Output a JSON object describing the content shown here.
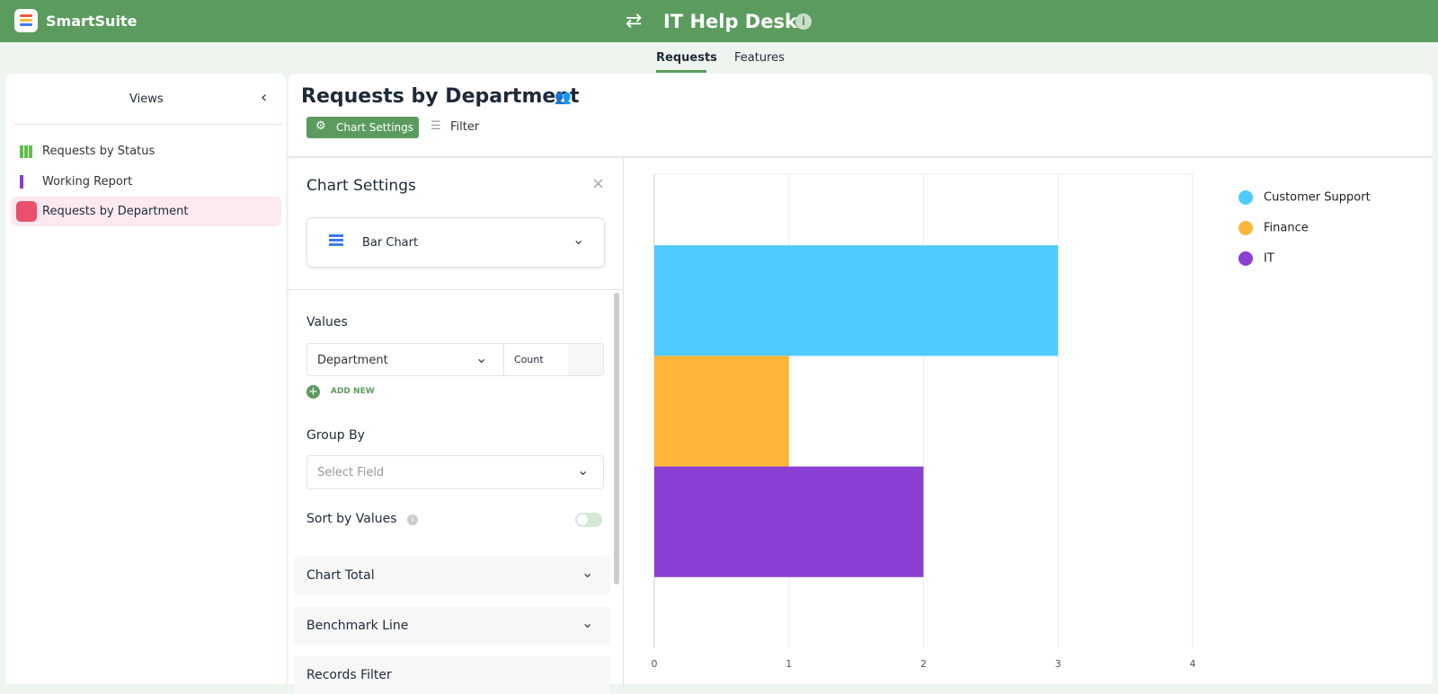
{
  "header": {
    "app": "SmartSuite",
    "title": "IT Help Desk"
  },
  "tabs": [
    "Requests",
    "Features"
  ],
  "sidebar": {
    "title": "Views",
    "items": [
      "Requests by Status",
      "Working Report",
      "Requests by Department"
    ]
  },
  "view": {
    "title": "Requests by Department",
    "buttons": [
      "Chart Settings",
      "Filter"
    ]
  },
  "settings": {
    "title": "Chart Settings",
    "chart_type": "Bar Chart",
    "values_label": "Values",
    "value_field": "Department",
    "aggregate": "Count",
    "add_new": "ADD NEW",
    "group_by_label": "Group By",
    "group_by_placeholder": "Select Field",
    "sort_label": "Sort by Values",
    "sections": [
      "Chart Total",
      "Benchmark Line",
      "Records Filter"
    ]
  },
  "chart_data": {
    "type": "bar",
    "orientation": "horizontal",
    "categories": [
      null
    ],
    "series": [
      {
        "name": "Customer Support",
        "color": "#4fcbfe",
        "values": [
          3
        ]
      },
      {
        "name": "Finance",
        "color": "#fdb63a",
        "values": [
          1
        ]
      },
      {
        "name": "IT",
        "color": "#8a3ed2",
        "values": [
          2
        ]
      }
    ],
    "xlim": [
      0,
      4
    ],
    "xticks": [
      0,
      1,
      2,
      3,
      4
    ],
    "grid": true,
    "legend": "right"
  }
}
